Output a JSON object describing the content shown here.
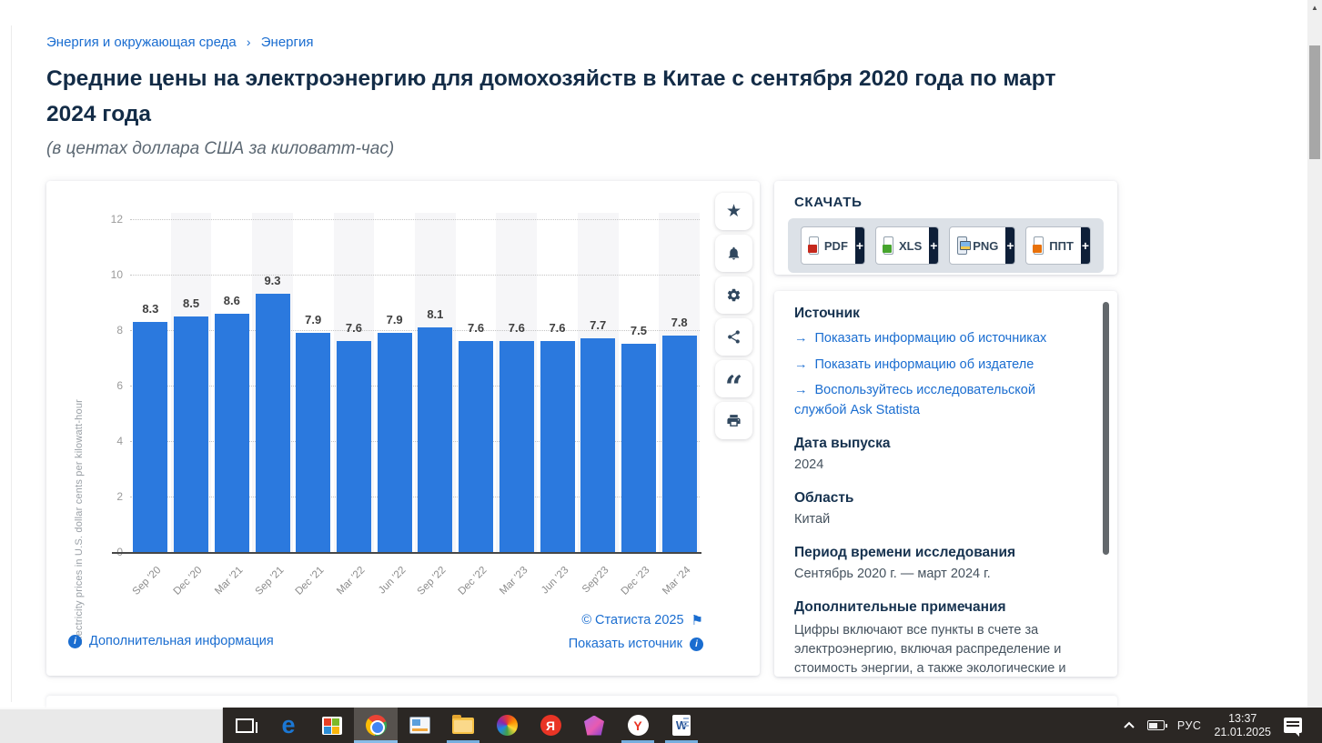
{
  "breadcrumb": {
    "items": [
      "Энергия и окружающая среда",
      "Энергия"
    ],
    "separator": "›"
  },
  "header": {
    "title": "Средние цены на электроэнергию для домохозяйств в Китае с сентября 2020 года по март 2024 года",
    "subtitle": "(в центах доллара США за киловатт-час)"
  },
  "chart_data": {
    "type": "bar",
    "categories": [
      "Sep '20",
      "Dec '20",
      "Mar '21",
      "Sep '21",
      "Dec '21",
      "Mar '22",
      "Jun '22",
      "Sep '22",
      "Dec '22",
      "Mar '23",
      "Jun '23",
      "Sep'23",
      "Dec '23",
      "Mar '24"
    ],
    "values": [
      8.3,
      8.5,
      8.6,
      9.3,
      7.9,
      7.6,
      7.9,
      8.1,
      7.6,
      7.6,
      7.6,
      7.7,
      7.5,
      7.8
    ],
    "title": "Средние цены на электроэнергию для домохозяйств в Китае с сентября 2020 года по март 2024 года",
    "xlabel": "",
    "ylabel": "Electricity prices in U.S. dollar cents per kilowatt-hour",
    "ylim": [
      0,
      12
    ],
    "yticks": [
      0,
      2,
      4,
      6,
      8,
      10,
      12
    ],
    "grid": "horizontal-dotted",
    "legend": "none",
    "bar_color": "#2b79de",
    "stripe_color": "#f6f6f8"
  },
  "chart_actions": {
    "icons": [
      "favorite-star-icon",
      "notification-bell-icon",
      "settings-gear-icon",
      "share-icon",
      "citation-quote-icon",
      "print-icon"
    ]
  },
  "chart_footer": {
    "more_info": "Дополнительная информация",
    "copyright": "© Статиста 2025",
    "show_source": "Показать источник",
    "info_glyph": "i",
    "flag_glyph": "⚑"
  },
  "download": {
    "heading": "СКАЧАТЬ",
    "plus": "+",
    "buttons": [
      {
        "label": "PDF",
        "format": "pdf"
      },
      {
        "label": "XLS",
        "format": "xls"
      },
      {
        "label": "PNG",
        "format": "png"
      },
      {
        "label": "ППТ",
        "format": "ppt"
      }
    ]
  },
  "source_panel": {
    "arrow": "→",
    "source_heading": "Источник",
    "links": [
      {
        "text": "Показать информацию об источниках"
      },
      {
        "text": "Показать информацию об издателе"
      },
      {
        "text": "Воспользуйтесь исследовательской службой Ask Statista"
      }
    ],
    "sections": [
      {
        "heading": "Дата выпуска",
        "value": "2024"
      },
      {
        "heading": "Область",
        "value": "Китай"
      },
      {
        "heading": "Период времени исследования",
        "value": "Сентябрь 2020 г. — март 2024 г."
      },
      {
        "heading": "Дополнительные примечания",
        "value": "Цифры включают все пункты в счете за электроэнергию, включая распределение и стоимость энергии, а также экологические и топливные сборы и налоги."
      }
    ]
  },
  "taskbar": {
    "language": "РУС",
    "time": "13:37",
    "date": "21.01.2025",
    "icons": [
      "task-view-icon",
      "edge-icon",
      "microsoft-store-icon",
      "chrome-icon",
      "presentation-app-icon",
      "file-explorer-icon",
      "photos-pinwheel-icon",
      "yandex-browser-icon",
      "paint3d-gem-icon",
      "yandex-y-icon",
      "word-icon"
    ]
  },
  "colors": {
    "accent_blue": "#1a6dd0",
    "bar_blue": "#2b79de",
    "navy": "#16324f",
    "taskbar_bg": "#2b2724"
  }
}
